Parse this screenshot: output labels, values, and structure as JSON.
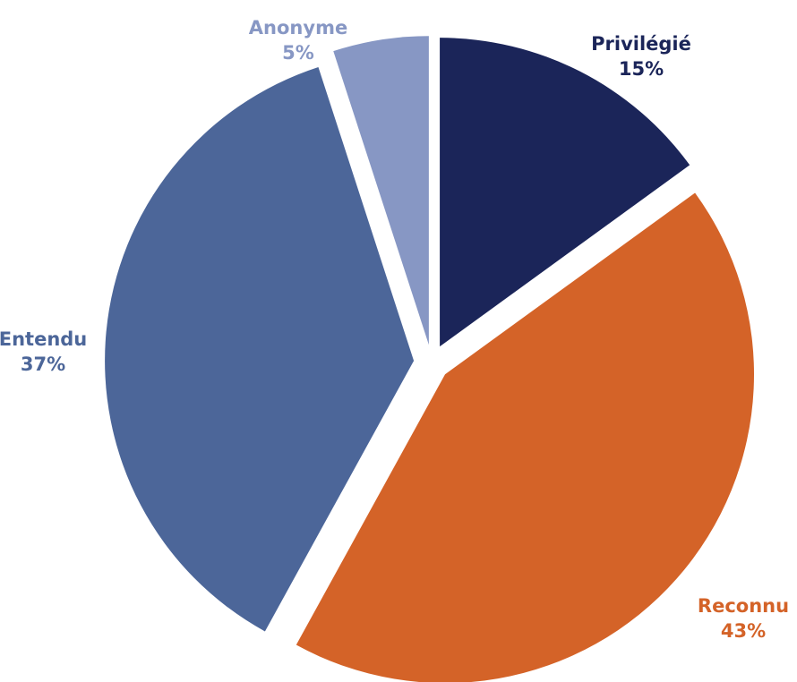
{
  "chart_data": {
    "type": "pie",
    "title": "",
    "slices": [
      {
        "label": "Privilégié",
        "value": 15,
        "value_label": "15%",
        "color": "#1b2559"
      },
      {
        "label": "Reconnu",
        "value": 43,
        "value_label": "43%",
        "color": "#d46328"
      },
      {
        "label": "Entendu",
        "value": 37,
        "value_label": "37%",
        "color": "#4c6699"
      },
      {
        "label": "Anonyme",
        "value": 5,
        "value_label": "5%",
        "color": "#8797c4"
      }
    ],
    "start_angle": "12 o'clock",
    "direction": "clockwise",
    "exploded": true,
    "legend": "none (labels beside slices)"
  }
}
